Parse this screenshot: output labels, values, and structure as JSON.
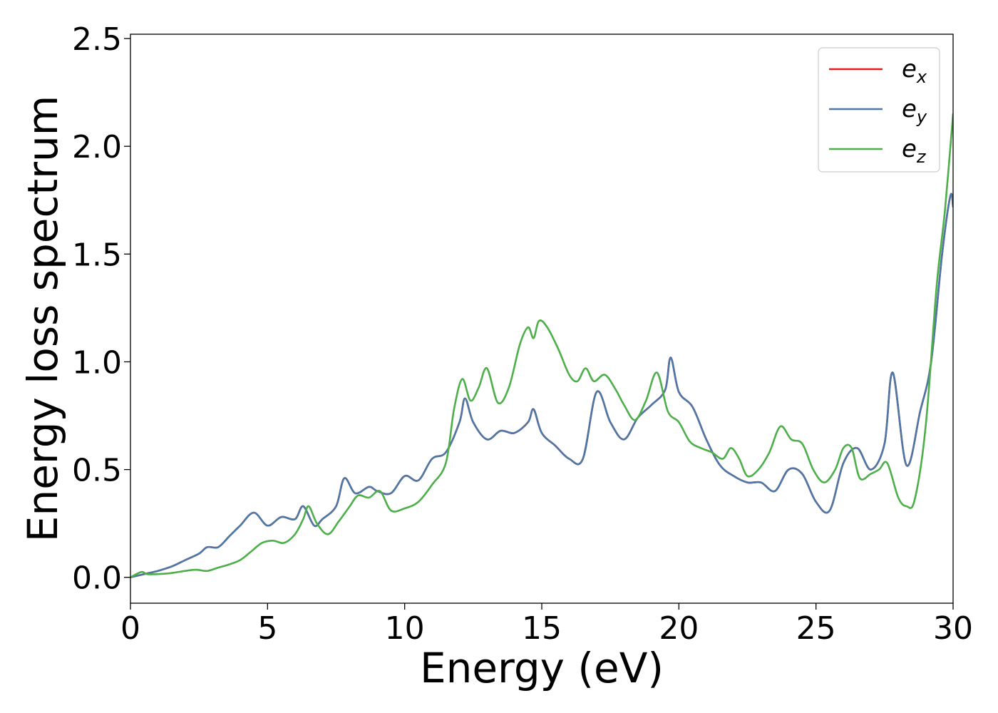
{
  "chart_data": {
    "type": "line",
    "title": "",
    "xlabel": "Energy (eV)",
    "ylabel": "Energy loss spectrum",
    "xlim": [
      0,
      30
    ],
    "ylim": [
      -0.12,
      2.52
    ],
    "xticks": [
      0,
      5,
      10,
      15,
      20,
      25,
      30
    ],
    "xtick_labels": [
      "0",
      "5",
      "10",
      "15",
      "20",
      "25",
      "30"
    ],
    "yticks": [
      0.0,
      0.5,
      1.0,
      1.5,
      2.0,
      2.5
    ],
    "ytick_labels": [
      "0.0",
      "0.5",
      "1.0",
      "1.5",
      "2.0",
      "2.5"
    ],
    "grid": false,
    "legend_position": "top-right",
    "series": [
      {
        "name": "e",
        "subscript": "x",
        "color": "#e41a1c",
        "x": [
          0,
          0.5,
          1,
          1.5,
          2,
          2.5,
          2.8,
          3.2,
          3.6,
          4,
          4.5,
          5,
          5.5,
          6,
          6.3,
          6.7,
          7,
          7.5,
          7.8,
          8.2,
          8.7,
          9,
          9.5,
          10,
          10.5,
          11,
          11.5,
          12,
          12.2,
          12.5,
          13,
          13.5,
          14,
          14.5,
          14.7,
          15,
          15.5,
          16,
          16.5,
          17,
          17.5,
          18,
          18.5,
          19,
          19.5,
          19.7,
          20,
          20.5,
          21,
          21.5,
          22,
          22.5,
          23,
          23.5,
          24,
          24.5,
          25,
          25.5,
          26,
          26.5,
          27,
          27.5,
          27.8,
          28.3,
          28.8,
          29.2,
          29.6,
          29.9,
          30
        ],
        "y": [
          0.0,
          0.015,
          0.03,
          0.05,
          0.08,
          0.11,
          0.14,
          0.14,
          0.19,
          0.24,
          0.3,
          0.24,
          0.28,
          0.27,
          0.33,
          0.24,
          0.27,
          0.33,
          0.46,
          0.39,
          0.42,
          0.4,
          0.39,
          0.47,
          0.45,
          0.55,
          0.58,
          0.72,
          0.83,
          0.72,
          0.64,
          0.68,
          0.67,
          0.72,
          0.78,
          0.67,
          0.61,
          0.55,
          0.55,
          0.86,
          0.72,
          0.64,
          0.74,
          0.8,
          0.87,
          1.02,
          0.86,
          0.79,
          0.64,
          0.52,
          0.47,
          0.44,
          0.44,
          0.4,
          0.5,
          0.48,
          0.35,
          0.31,
          0.53,
          0.6,
          0.5,
          0.62,
          0.95,
          0.52,
          0.77,
          1.0,
          1.5,
          1.77,
          1.72
        ]
      },
      {
        "name": "e",
        "subscript": "y",
        "color": "#4c78a8",
        "x": [
          0,
          0.5,
          1,
          1.5,
          2,
          2.5,
          2.8,
          3.2,
          3.6,
          4,
          4.5,
          5,
          5.5,
          6,
          6.3,
          6.7,
          7,
          7.5,
          7.8,
          8.2,
          8.7,
          9,
          9.5,
          10,
          10.5,
          11,
          11.5,
          12,
          12.2,
          12.5,
          13,
          13.5,
          14,
          14.5,
          14.7,
          15,
          15.5,
          16,
          16.5,
          17,
          17.5,
          18,
          18.5,
          19,
          19.5,
          19.7,
          20,
          20.5,
          21,
          21.5,
          22,
          22.5,
          23,
          23.5,
          24,
          24.5,
          25,
          25.5,
          26,
          26.5,
          27,
          27.5,
          27.8,
          28.3,
          28.8,
          29.2,
          29.6,
          29.9,
          30
        ],
        "y": [
          0.0,
          0.015,
          0.03,
          0.05,
          0.08,
          0.11,
          0.14,
          0.14,
          0.19,
          0.24,
          0.3,
          0.24,
          0.28,
          0.27,
          0.33,
          0.24,
          0.27,
          0.33,
          0.46,
          0.39,
          0.42,
          0.4,
          0.39,
          0.47,
          0.45,
          0.55,
          0.58,
          0.72,
          0.83,
          0.72,
          0.64,
          0.68,
          0.67,
          0.72,
          0.78,
          0.67,
          0.61,
          0.55,
          0.55,
          0.86,
          0.72,
          0.64,
          0.74,
          0.8,
          0.87,
          1.02,
          0.86,
          0.79,
          0.64,
          0.52,
          0.47,
          0.44,
          0.44,
          0.4,
          0.5,
          0.48,
          0.35,
          0.31,
          0.53,
          0.6,
          0.5,
          0.62,
          0.95,
          0.52,
          0.77,
          1.0,
          1.5,
          1.77,
          1.72
        ]
      },
      {
        "name": "e",
        "subscript": "z",
        "color": "#4daf4a",
        "x": [
          0,
          0.4,
          0.6,
          1,
          1.5,
          2,
          2.4,
          2.8,
          3.2,
          3.6,
          4,
          4.4,
          4.8,
          5.2,
          5.6,
          6,
          6.3,
          6.5,
          6.8,
          7.2,
          7.6,
          8,
          8.3,
          8.7,
          9.1,
          9.5,
          10,
          10.5,
          11,
          11.5,
          11.8,
          12.1,
          12.4,
          12.7,
          13,
          13.4,
          13.8,
          14.2,
          14.5,
          14.7,
          14.9,
          15.2,
          15.6,
          16,
          16.3,
          16.6,
          16.9,
          17.3,
          17.7,
          18,
          18.4,
          18.8,
          19.2,
          19.6,
          20,
          20.4,
          20.8,
          21.2,
          21.6,
          21.9,
          22.2,
          22.5,
          22.9,
          23.3,
          23.7,
          24.1,
          24.5,
          24.9,
          25.3,
          25.7,
          26,
          26.3,
          26.6,
          27,
          27.3,
          27.6,
          28,
          28.3,
          28.6,
          29,
          29.4,
          29.7,
          30
        ],
        "y": [
          0.0,
          0.025,
          0.015,
          0.015,
          0.02,
          0.03,
          0.035,
          0.03,
          0.045,
          0.06,
          0.08,
          0.12,
          0.16,
          0.17,
          0.16,
          0.2,
          0.27,
          0.33,
          0.25,
          0.2,
          0.26,
          0.33,
          0.38,
          0.37,
          0.4,
          0.31,
          0.32,
          0.35,
          0.43,
          0.53,
          0.78,
          0.92,
          0.82,
          0.88,
          0.97,
          0.81,
          0.88,
          1.08,
          1.16,
          1.11,
          1.19,
          1.16,
          1.06,
          0.94,
          0.91,
          0.97,
          0.91,
          0.94,
          0.87,
          0.8,
          0.73,
          0.82,
          0.95,
          0.77,
          0.72,
          0.63,
          0.6,
          0.58,
          0.55,
          0.6,
          0.55,
          0.47,
          0.5,
          0.58,
          0.7,
          0.64,
          0.62,
          0.5,
          0.44,
          0.5,
          0.6,
          0.6,
          0.46,
          0.48,
          0.5,
          0.53,
          0.37,
          0.33,
          0.36,
          0.7,
          1.35,
          1.7,
          2.15
        ]
      }
    ]
  }
}
